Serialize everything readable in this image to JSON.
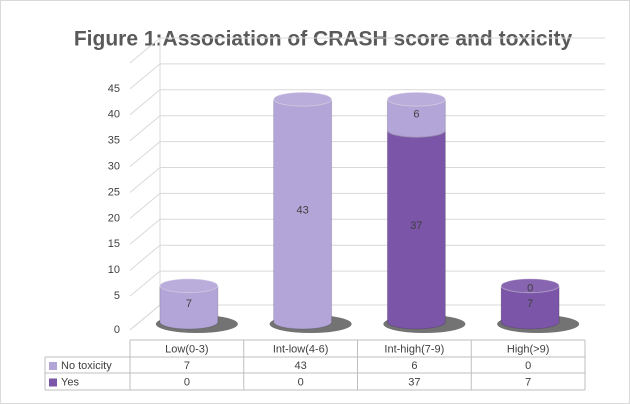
{
  "chart_data": {
    "type": "bar3d-stacked",
    "title": "Figure 1:Association of CRASH score and toxicity",
    "categories": [
      "Low(0-3)",
      "Int-low(4-6)",
      "Int-high(7-9)",
      "High(>9)"
    ],
    "series": [
      {
        "name": "Yes",
        "color": "#7b55a8",
        "values": [
          0,
          0,
          37,
          7
        ]
      },
      {
        "name": "No toxicity",
        "color": "#b4a5d8",
        "values": [
          7,
          43,
          6,
          0
        ]
      }
    ],
    "ylim": [
      0,
      50
    ],
    "yticks": [
      0,
      5,
      10,
      15,
      20,
      25,
      30,
      35,
      40,
      45
    ],
    "grid": true
  }
}
